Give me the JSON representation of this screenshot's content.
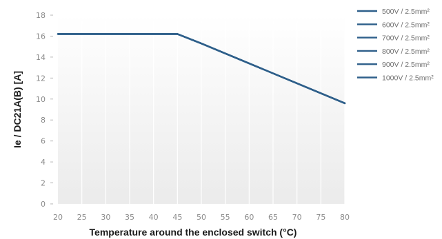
{
  "chart_data": {
    "type": "line",
    "xlabel": "Temperature around the enclosed switch (°C)",
    "ylabel": "Ie / DC21A(B) [A]",
    "x": [
      20,
      25,
      30,
      35,
      40,
      45,
      50,
      55,
      60,
      65,
      70,
      75,
      80
    ],
    "xlim": [
      20,
      80
    ],
    "ylim": [
      0,
      18
    ],
    "yticks": [
      0,
      2,
      4,
      6,
      8,
      10,
      12,
      14,
      16,
      18
    ],
    "grid": "vertical",
    "legend_position": "top-right",
    "series_color": "#2e5f8a",
    "series": [
      {
        "name": "500V / 2.5mm²",
        "x": [
          20,
          45,
          50,
          80
        ],
        "values": [
          16.2,
          16.2,
          15.3,
          9.6
        ]
      },
      {
        "name": "600V / 2.5mm²",
        "x": [
          20,
          45,
          50,
          80
        ],
        "values": [
          16.2,
          16.2,
          15.3,
          9.6
        ]
      },
      {
        "name": "700V / 2.5mm²",
        "x": [
          20,
          45,
          50,
          80
        ],
        "values": [
          16.2,
          16.2,
          15.3,
          9.6
        ]
      },
      {
        "name": "800V / 2.5mm²",
        "x": [
          20,
          45,
          50,
          80
        ],
        "values": [
          16.2,
          16.2,
          15.3,
          9.6
        ]
      },
      {
        "name": "900V / 2.5mm²",
        "x": [
          20,
          45,
          50,
          80
        ],
        "values": [
          16.2,
          16.2,
          15.3,
          9.6
        ]
      },
      {
        "name": "1000V / 2.5mm²",
        "x": [
          20,
          45,
          50,
          80
        ],
        "values": [
          16.2,
          16.2,
          15.3,
          9.6
        ]
      }
    ]
  }
}
